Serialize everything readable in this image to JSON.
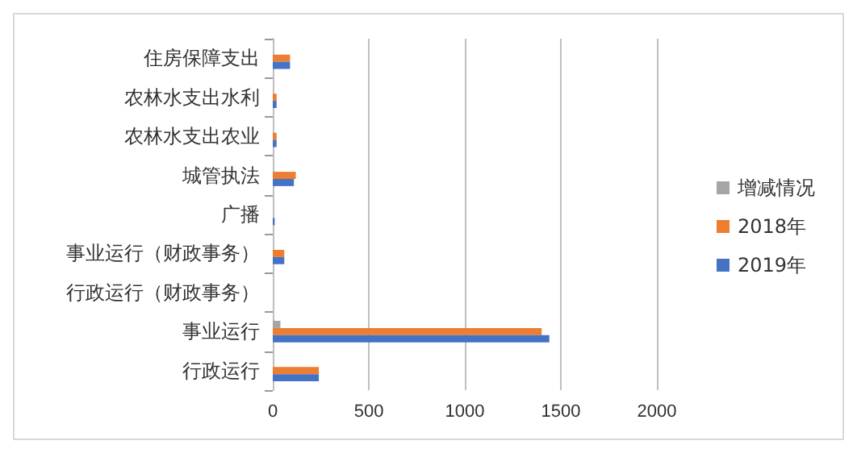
{
  "chart_data": {
    "type": "bar",
    "orientation": "horizontal",
    "categories": [
      "住房保障支出",
      "农林水支出水利",
      "农林水支出农业",
      "城管执法",
      "广播",
      "事业运行（财政事务）",
      "行政运行（财政事务）",
      "事业运行",
      "行政运行"
    ],
    "series": [
      {
        "name": "增减情况",
        "color": "#a5a5a5",
        "values": [
          0,
          0,
          0,
          0,
          0,
          0,
          0,
          40,
          0
        ]
      },
      {
        "name": "2018年",
        "color": "#ed7d31",
        "values": [
          90,
          20,
          20,
          120,
          0,
          60,
          0,
          1400,
          240
        ]
      },
      {
        "name": "2019年",
        "color": "#4472c4",
        "values": [
          90,
          20,
          20,
          110,
          10,
          60,
          0,
          1440,
          240
        ]
      }
    ],
    "xlim": [
      0,
      2000
    ],
    "xticks": [
      0,
      500,
      1000,
      1500,
      2000
    ],
    "grid": "x",
    "legend": "right"
  }
}
